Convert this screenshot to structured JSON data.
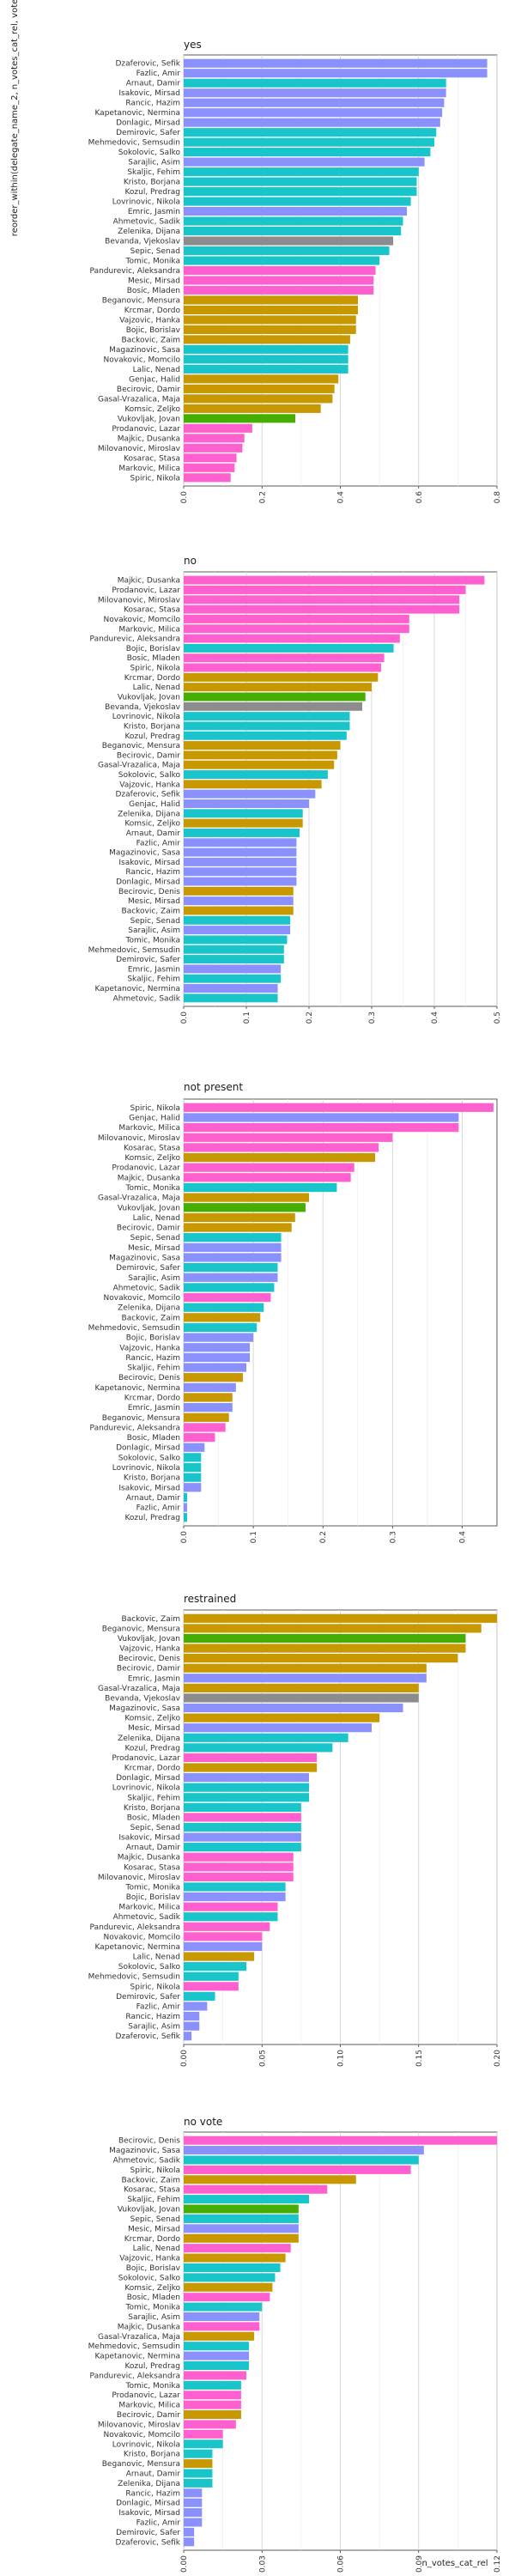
{
  "y_axis_label": "reorder_within(delegate_name_2, n_votes_cat_rel, vote)",
  "x_axis_label": "n_votes_cat_rel",
  "chart_data": [
    {
      "type": "bar",
      "title": "yes",
      "xlim": [
        0,
        0.8
      ],
      "ticks": [
        0.0,
        0.2,
        0.4,
        0.6,
        0.8
      ],
      "tick_labels": [
        "0.0",
        "0.2",
        "0.4",
        "0.6",
        "0.8"
      ],
      "categories": [
        "Dzaferovic, Sefik",
        "Fazlic, Amir",
        "Arnaut, Damir",
        "Isakovic, Mirsad",
        "Rancic, Hazim",
        "Kapetanovic, Nermina",
        "Donlagic, Mirsad",
        "Demirovic, Safer",
        "Mehmedovic, Semsudin",
        "Sokolovic, Salko",
        "Sarajlic, Asim",
        "Skaljic, Fehim",
        "Kristo, Borjana",
        "Kozul, Predrag",
        "Lovrinovic, Nikola",
        "Emric, Jasmin",
        "Ahmetovic, Sadik",
        "Zelenika, Dijana",
        "Bevanda, Vjekoslav",
        "Sepic, Senad",
        "Tomic, Monika",
        "Pandurevic, Aleksandra",
        "Mesic, Mirsad",
        "Bosic, Mladen",
        "Beganovic, Mensura",
        "Krcmar, Dordo",
        "Vajzovic, Hanka",
        "Bojic, Borislav",
        "Backovic, Zaim",
        "Magazinovic, Sasa",
        "Novakovic, Momcilo",
        "Lalic, Nenad",
        "Genjac, Halid",
        "Becirovic, Damir",
        "Gasal-Vrazalica, Maja",
        "Komsic, Zeljko",
        "Vukovljak, Jovan",
        "Prodanovic, Lazar",
        "Majkic, Dusanka",
        "Milovanovic, Miroslav",
        "Kosarac, Stasa",
        "Markovic, Milica",
        "Spiric, Nikola"
      ],
      "values": [
        0.775,
        0.775,
        0.67,
        0.67,
        0.665,
        0.66,
        0.655,
        0.645,
        0.64,
        0.63,
        0.615,
        0.6,
        0.595,
        0.595,
        0.58,
        0.57,
        0.56,
        0.555,
        0.535,
        0.525,
        0.5,
        0.49,
        0.485,
        0.485,
        0.445,
        0.445,
        0.44,
        0.44,
        0.425,
        0.42,
        0.42,
        0.42,
        0.395,
        0.385,
        0.38,
        0.35,
        0.285,
        0.175,
        0.155,
        0.15,
        0.135,
        0.13,
        0.12
      ],
      "colors": [
        "#8A90FC",
        "#8A90FC",
        "#19C5CB",
        "#8A90FC",
        "#8A90FC",
        "#8A90FC",
        "#8A90FC",
        "#19C5CB",
        "#19C5CB",
        "#19C5CB",
        "#8A90FC",
        "#19C5CB",
        "#19C5CB",
        "#19C5CB",
        "#19C5CB",
        "#8A90FC",
        "#19C5CB",
        "#19C5CB",
        "#8C8C8C",
        "#19C5CB",
        "#19C5CB",
        "#FE61CF",
        "#FE61CF",
        "#FE61CF",
        "#C89800",
        "#C89800",
        "#C89800",
        "#C89800",
        "#C89800",
        "#19C5CB",
        "#19C5CB",
        "#19C5CB",
        "#C89800",
        "#C89800",
        "#C89800",
        "#C89800",
        "#45AE00",
        "#FE61CF",
        "#FE61CF",
        "#FE61CF",
        "#FE61CF",
        "#FE61CF",
        "#FE61CF"
      ]
    },
    {
      "type": "bar",
      "title": "no",
      "xlim": [
        0,
        0.5
      ],
      "ticks": [
        0.0,
        0.1,
        0.2,
        0.3,
        0.4,
        0.5
      ],
      "tick_labels": [
        "0.0",
        "0.1",
        "0.2",
        "0.3",
        "0.4",
        "0.5"
      ],
      "categories": [
        "Majkic, Dusanka",
        "Prodanovic, Lazar",
        "Milovanovic, Miroslav",
        "Kosarac, Stasa",
        "Novakovic, Momcilo",
        "Markovic, Milica",
        "Pandurevic, Aleksandra",
        "Bojic, Borislav",
        "Bosic, Mladen",
        "Spiric, Nikola",
        "Krcmar, Dordo",
        "Lalic, Nenad",
        "Vukovljak, Jovan",
        "Bevanda, Vjekoslav",
        "Lovrinovic, Nikola",
        "Kristo, Borjana",
        "Kozul, Predrag",
        "Beganovic, Mensura",
        "Becirovic, Damir",
        "Gasal-Vrazalica, Maja",
        "Sokolovic, Salko",
        "Vajzovic, Hanka",
        "Dzaferovic, Sefik",
        "Genjac, Halid",
        "Zelenika, Dijana",
        "Komsic, Zeljko",
        "Arnaut, Damir",
        "Fazlic, Amir",
        "Magazinovic, Sasa",
        "Isakovic, Mirsad",
        "Rancic, Hazim",
        "Donlagic, Mirsad",
        "Becirovic, Denis",
        "Mesic, Mirsad",
        "Backovic, Zaim",
        "Sepic, Senad",
        "Sarajlic, Asim",
        "Tomic, Monika",
        "Mehmedovic, Semsudin",
        "Demirovic, Safer",
        "Emric, Jasmin",
        "Skaljic, Fehim",
        "Kapetanovic, Nermina",
        "Ahmetovic, Sadik"
      ],
      "values": [
        0.48,
        0.45,
        0.44,
        0.44,
        0.36,
        0.36,
        0.345,
        0.335,
        0.32,
        0.315,
        0.31,
        0.3,
        0.29,
        0.285,
        0.265,
        0.265,
        0.26,
        0.25,
        0.245,
        0.24,
        0.23,
        0.22,
        0.21,
        0.2,
        0.19,
        0.19,
        0.185,
        0.18,
        0.18,
        0.18,
        0.18,
        0.18,
        0.175,
        0.175,
        0.175,
        0.17,
        0.17,
        0.165,
        0.16,
        0.16,
        0.155,
        0.155,
        0.15,
        0.15
      ],
      "colors": [
        "#FE61CF",
        "#FE61CF",
        "#FE61CF",
        "#FE61CF",
        "#FE61CF",
        "#FE61CF",
        "#FE61CF",
        "#19C5CB",
        "#FE61CF",
        "#FE61CF",
        "#C89800",
        "#C89800",
        "#45AE00",
        "#8C8C8C",
        "#19C5CB",
        "#19C5CB",
        "#19C5CB",
        "#C89800",
        "#C89800",
        "#C89800",
        "#19C5CB",
        "#C89800",
        "#8A90FC",
        "#8A90FC",
        "#19C5CB",
        "#C89800",
        "#19C5CB",
        "#8A90FC",
        "#8A90FC",
        "#8A90FC",
        "#8A90FC",
        "#8A90FC",
        "#C89800",
        "#8A90FC",
        "#C89800",
        "#19C5CB",
        "#8A90FC",
        "#19C5CB",
        "#19C5CB",
        "#19C5CB",
        "#8A90FC",
        "#19C5CB",
        "#8A90FC",
        "#19C5CB"
      ]
    },
    {
      "type": "bar",
      "title": "not present",
      "xlim": [
        0,
        0.45
      ],
      "ticks": [
        0.0,
        0.1,
        0.2,
        0.3,
        0.4
      ],
      "tick_labels": [
        "0.0",
        "0.1",
        "0.2",
        "0.3",
        "0.4"
      ],
      "categories": [
        "Spiric, Nikola",
        "Genjac, Halid",
        "Markovic, Milica",
        "Milovanovic, Miroslav",
        "Kosarac, Stasa",
        "Komsic, Zeljko",
        "Prodanovic, Lazar",
        "Majkic, Dusanka",
        "Tomic, Monika",
        "Gasal-Vrazalica, Maja",
        "Vukovljak, Jovan",
        "Lalic, Nenad",
        "Becirovic, Damir",
        "Sepic, Senad",
        "Mesic, Mirsad",
        "Magazinovic, Sasa",
        "Demirovic, Safer",
        "Sarajlic, Asim",
        "Ahmetovic, Sadik",
        "Novakovic, Momcilo",
        "Zelenika, Dijana",
        "Backovic, Zaim",
        "Mehmedovic, Semsudin",
        "Bojic, Borislav",
        "Vajzovic, Hanka",
        "Rancic, Hazim",
        "Skaljic, Fehim",
        "Becirovic, Denis",
        "Kapetanovic, Nermina",
        "Krcmar, Dordo",
        "Emric, Jasmin",
        "Beganovic, Mensura",
        "Pandurevic, Aleksandra",
        "Bosic, Mladen",
        "Donlagic, Mirsad",
        "Sokolovic, Salko",
        "Lovrinovic, Nikola",
        "Kristo, Borjana",
        "Isakovic, Mirsad",
        "Arnaut, Damir",
        "Fazlic, Amir",
        "Kozul, Predrag"
      ],
      "values": [
        0.445,
        0.395,
        0.395,
        0.3,
        0.28,
        0.275,
        0.245,
        0.24,
        0.22,
        0.18,
        0.175,
        0.16,
        0.155,
        0.14,
        0.14,
        0.14,
        0.135,
        0.135,
        0.13,
        0.125,
        0.115,
        0.11,
        0.105,
        0.1,
        0.095,
        0.095,
        0.09,
        0.085,
        0.075,
        0.07,
        0.07,
        0.065,
        0.06,
        0.045,
        0.03,
        0.025,
        0.025,
        0.025,
        0.025,
        0.005,
        0.005,
        0.005
      ],
      "colors": [
        "#FE61CF",
        "#8A90FC",
        "#FE61CF",
        "#FE61CF",
        "#FE61CF",
        "#C89800",
        "#FE61CF",
        "#FE61CF",
        "#19C5CB",
        "#C89800",
        "#45AE00",
        "#C89800",
        "#C89800",
        "#19C5CB",
        "#8A90FC",
        "#8A90FC",
        "#19C5CB",
        "#8A90FC",
        "#19C5CB",
        "#FE61CF",
        "#19C5CB",
        "#C89800",
        "#19C5CB",
        "#8A90FC",
        "#8A90FC",
        "#8A90FC",
        "#8A90FC",
        "#C89800",
        "#8A90FC",
        "#C89800",
        "#8A90FC",
        "#C89800",
        "#FE61CF",
        "#FE61CF",
        "#8A90FC",
        "#19C5CB",
        "#19C5CB",
        "#19C5CB",
        "#8A90FC",
        "#19C5CB",
        "#8A90FC",
        "#19C5CB"
      ]
    },
    {
      "type": "bar",
      "title": "restrained",
      "xlim": [
        0,
        0.2
      ],
      "ticks": [
        0.0,
        0.05,
        0.1,
        0.15,
        0.2
      ],
      "tick_labels": [
        "0.00",
        "0.05",
        "0.10",
        "0.15",
        "0.20"
      ],
      "categories": [
        "Backovic, Zaim",
        "Beganovic, Mensura",
        "Vukovljak, Jovan",
        "Vajzovic, Hanka",
        "Becirovic, Denis",
        "Becirovic, Damir",
        "Emric, Jasmin",
        "Gasal-Vrazalica, Maja",
        "Bevanda, Vjekoslav",
        "Magazinovic, Sasa",
        "Komsic, Zeljko",
        "Mesic, Mirsad",
        "Zelenika, Dijana",
        "Kozul, Predrag",
        "Prodanovic, Lazar",
        "Krcmar, Dordo",
        "Donlagic, Mirsad",
        "Lovrinovic, Nikola",
        "Skaljic, Fehim",
        "Kristo, Borjana",
        "Bosic, Mladen",
        "Sepic, Senad",
        "Isakovic, Mirsad",
        "Arnaut, Damir",
        "Majkic, Dusanka",
        "Kosarac, Stasa",
        "Milovanovic, Miroslav",
        "Tomic, Monika",
        "Bojic, Borislav",
        "Markovic, Milica",
        "Ahmetovic, Sadik",
        "Pandurevic, Aleksandra",
        "Novakovic, Momcilo",
        "Kapetanovic, Nermina",
        "Lalic, Nenad",
        "Sokolovic, Salko",
        "Mehmedovic, Semsudin",
        "Spiric, Nikola",
        "Demirovic, Safer",
        "Fazlic, Amir",
        "Rancic, Hazim",
        "Sarajlic, Asim",
        "Dzaferovic, Sefik"
      ],
      "values": [
        0.2,
        0.19,
        0.18,
        0.18,
        0.175,
        0.155,
        0.155,
        0.15,
        0.15,
        0.14,
        0.125,
        0.12,
        0.105,
        0.095,
        0.085,
        0.085,
        0.08,
        0.08,
        0.08,
        0.075,
        0.075,
        0.075,
        0.075,
        0.075,
        0.07,
        0.07,
        0.07,
        0.065,
        0.065,
        0.06,
        0.06,
        0.055,
        0.05,
        0.05,
        0.045,
        0.04,
        0.035,
        0.035,
        0.02,
        0.015,
        0.01,
        0.01,
        0.005
      ],
      "colors": [
        "#C89800",
        "#C89800",
        "#45AE00",
        "#C89800",
        "#C89800",
        "#C89800",
        "#8A90FC",
        "#C89800",
        "#8C8C8C",
        "#8A90FC",
        "#C89800",
        "#8A90FC",
        "#19C5CB",
        "#19C5CB",
        "#FE61CF",
        "#C89800",
        "#8A90FC",
        "#19C5CB",
        "#19C5CB",
        "#19C5CB",
        "#FE61CF",
        "#19C5CB",
        "#8A90FC",
        "#19C5CB",
        "#FE61CF",
        "#FE61CF",
        "#FE61CF",
        "#19C5CB",
        "#8A90FC",
        "#FE61CF",
        "#19C5CB",
        "#FE61CF",
        "#FE61CF",
        "#8A90FC",
        "#C89800",
        "#19C5CB",
        "#19C5CB",
        "#FE61CF",
        "#19C5CB",
        "#8A90FC",
        "#8A90FC",
        "#8A90FC",
        "#8A90FC"
      ]
    },
    {
      "type": "bar",
      "title": "no vote",
      "xlim": [
        0,
        0.12
      ],
      "ticks": [
        0.0,
        0.03,
        0.06,
        0.09,
        0.12
      ],
      "tick_labels": [
        "0.00",
        "0.03",
        "0.06",
        "0.09",
        "0.12"
      ],
      "categories": [
        "Becirovic, Denis",
        "Magazinovic, Sasa",
        "Ahmetovic, Sadik",
        "Spiric, Nikola",
        "Backovic, Zaim",
        "Kosarac, Stasa",
        "Skaljic, Fehim",
        "Vukovljak, Jovan",
        "Sepic, Senad",
        "Mesic, Mirsad",
        "Krcmar, Dordo",
        "Lalic, Nenad",
        "Vajzovic, Hanka",
        "Bojic, Borislav",
        "Sokolovic, Salko",
        "Komsic, Zeljko",
        "Bosic, Mladen",
        "Tomic, Monika",
        "Sarajlic, Asim",
        "Majkic, Dusanka",
        "Gasal-Vrazalica, Maja",
        "Mehmedovic, Semsudin",
        "Kapetanovic, Nermina",
        "Kozul, Predrag",
        "Pandurevic, Aleksandra",
        "Tomic, Monika",
        "Prodanovic, Lazar",
        "Markovic, Milica",
        "Becirovic, Damir",
        "Milovanovic, Miroslav",
        "Novakovic, Momcilo",
        "Lovrinovic, Nikola",
        "Kristo, Borjana",
        "Beganovic, Mensura",
        "Arnaut, Damir",
        "Zelenika, Dijana",
        "Rancic, Hazim",
        "Donlagic, Mirsad",
        "Isakovic, Mirsad",
        "Fazlic, Amir",
        "Demirovic, Safer",
        "Dzaferovic, Sefik"
      ],
      "values": [
        0.12,
        0.092,
        0.09,
        0.087,
        0.066,
        0.055,
        0.048,
        0.044,
        0.044,
        0.044,
        0.044,
        0.041,
        0.039,
        0.037,
        0.035,
        0.034,
        0.033,
        0.03,
        0.029,
        0.029,
        0.027,
        0.025,
        0.025,
        0.025,
        0.024,
        0.022,
        0.022,
        0.022,
        0.022,
        0.02,
        0.015,
        0.015,
        0.011,
        0.011,
        0.011,
        0.011,
        0.007,
        0.007,
        0.007,
        0.007,
        0.004,
        0.004
      ],
      "colors": [
        "#FE61CF",
        "#8A90FC",
        "#19C5CB",
        "#FE61CF",
        "#C89800",
        "#FE61CF",
        "#19C5CB",
        "#45AE00",
        "#19C5CB",
        "#8A90FC",
        "#C89800",
        "#FE61CF",
        "#C89800",
        "#19C5CB",
        "#19C5CB",
        "#C89800",
        "#FE61CF",
        "#19C5CB",
        "#8A90FC",
        "#FE61CF",
        "#C89800",
        "#19C5CB",
        "#8A90FC",
        "#19C5CB",
        "#FE61CF",
        "#19C5CB",
        "#FE61CF",
        "#FE61CF",
        "#C89800",
        "#FE61CF",
        "#FE61CF",
        "#19C5CB",
        "#19C5CB",
        "#C89800",
        "#19C5CB",
        "#19C5CB",
        "#8A90FC",
        "#8A90FC",
        "#8A90FC",
        "#8A90FC",
        "#8A90FC",
        "#8A90FC"
      ]
    }
  ]
}
